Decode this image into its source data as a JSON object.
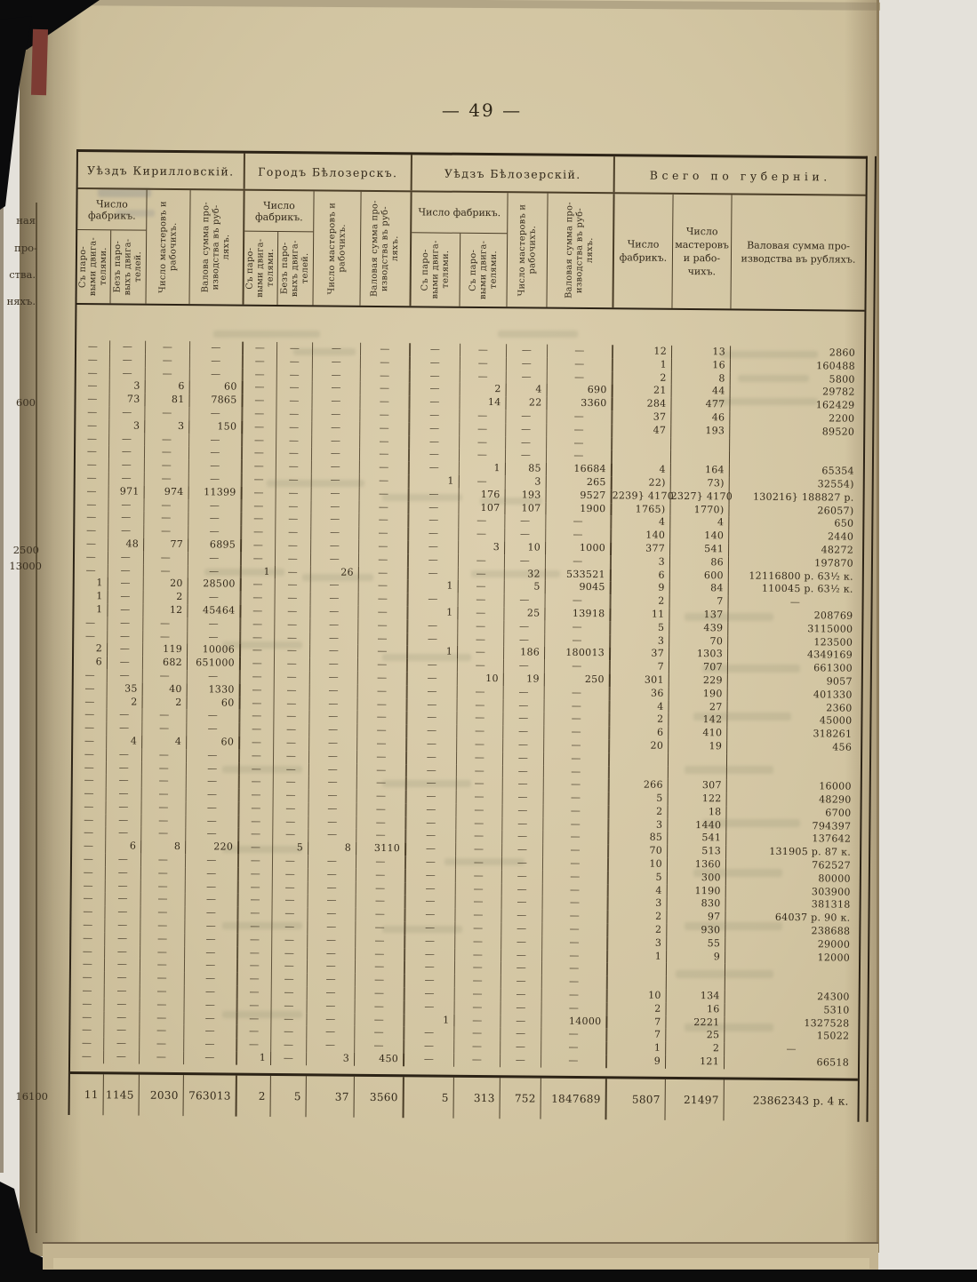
{
  "page": {
    "number_display": "— 49 —"
  },
  "colors": {
    "paper": "#d2c5a2",
    "ink": "#33291a",
    "binding_red": "#7c3b33"
  },
  "left_bleed": {
    "fragments": [
      "ная",
      "про-",
      "ства.",
      "няхъ."
    ],
    "values": [
      "600",
      "2500",
      "13000",
      "16100"
    ]
  },
  "table": {
    "groups": [
      {
        "title": "Уѣздъ Кирилловскій.",
        "fab": "Число фабрикъ.",
        "sub1": "Съ паро- выми двига- телями.",
        "sub2": "Безъ паро- выхъ двига- телей.",
        "col3": "Число мастеровъ и рабочихъ.",
        "col4": "Валова сумма про- изводства въ руб- ляхъ."
      },
      {
        "title": "Городъ Бѣлозерскъ.",
        "fab": "Число фабрикъ.",
        "sub1": "Съ паро- выми двига- телями.",
        "sub2": "Безъ паро- выхъ двига- телей.",
        "col3": "Число мастеровъ и рабочихъ.",
        "col4": "Валовая сумма про- изводства въ руб- ляхъ."
      },
      {
        "title": "Уѣдзъ Бѣлозерскій.",
        "fab": "Число фабрикъ.",
        "sub1": "Съ паро- выми двига- телями.",
        "sub2": "Съ паро- выми двига- телями.",
        "col3": "Число мастеровъ и рабочихъ.",
        "col4": "Валовая сумма про- изводства въ руб- ляхъ."
      },
      {
        "title": "Всего по губерніи.",
        "col1": "Число фабрикъ.",
        "col2": "Число мастеровъ и рабо- чихъ.",
        "col3": "Валовая сумма про- изводства въ рубляхъ."
      }
    ],
    "rows": [
      [
        "—",
        "—",
        "—",
        "—",
        "—",
        "—",
        "—",
        "—",
        "—",
        "—",
        "—",
        "—",
        "12",
        "13",
        "2860"
      ],
      [
        "—",
        "—",
        "—",
        "—",
        "—",
        "—",
        "—",
        "—",
        "—",
        "—",
        "—",
        "—",
        "1",
        "16",
        "160488"
      ],
      [
        "—",
        "—",
        "—",
        "—",
        "—",
        "—",
        "—",
        "—",
        "—",
        "—",
        "—",
        "—",
        "2",
        "8",
        "5800"
      ],
      [
        "—",
        "3",
        "6",
        "60",
        "—",
        "—",
        "—",
        "—",
        "—",
        "2",
        "4",
        "690",
        "21",
        "44",
        "29782"
      ],
      [
        "—",
        "73",
        "81",
        "7865",
        "—",
        "—",
        "—",
        "—",
        "—",
        "14",
        "22",
        "3360",
        "284",
        "477",
        "162429"
      ],
      [
        "—",
        "—",
        "—",
        "—",
        "—",
        "—",
        "—",
        "—",
        "—",
        "—",
        "—",
        "—",
        "37",
        "46",
        "2200"
      ],
      [
        "—",
        "3",
        "3",
        "150",
        "—",
        "—",
        "—",
        "—",
        "—",
        "—",
        "—",
        "—",
        "47",
        "193",
        "89520"
      ],
      [
        "—",
        "—",
        "—",
        "—",
        "—",
        "—",
        "—",
        "—",
        "—",
        "—",
        "—",
        "—",
        "",
        "",
        ""
      ],
      [
        "—",
        "—",
        "—",
        "—",
        "—",
        "—",
        "—",
        "—",
        "—",
        "—",
        "—",
        "—",
        "",
        "",
        ""
      ],
      [
        "—",
        "—",
        "—",
        "—",
        "—",
        "—",
        "—",
        "—",
        "—",
        "1",
        "85",
        "16684",
        "4",
        "164",
        "65354"
      ],
      [
        "—",
        "—",
        "—",
        "—",
        "—",
        "—",
        "—",
        "—",
        "1",
        "—",
        "3",
        "265",
        "22)",
        "73)",
        "32554)"
      ],
      [
        "—",
        "971",
        "974",
        "11399",
        "—",
        "—",
        "—",
        "—",
        "—",
        "176",
        "193",
        "9527",
        "2239} 4170",
        "2327} 4170",
        "130216}  188827 р."
      ],
      [
        "—",
        "—",
        "—",
        "—",
        "—",
        "—",
        "—",
        "—",
        "—",
        "107",
        "107",
        "1900",
        "1765)",
        "1770)",
        "26057)"
      ],
      [
        "—",
        "—",
        "—",
        "—",
        "—",
        "—",
        "—",
        "—",
        "—",
        "—",
        "—",
        "—",
        "4",
        "4",
        "650"
      ],
      [
        "—",
        "—",
        "—",
        "—",
        "—",
        "—",
        "—",
        "—",
        "—",
        "—",
        "—",
        "—",
        "140",
        "140",
        "2440"
      ],
      [
        "—",
        "48",
        "77",
        "6895",
        "—",
        "—",
        "—",
        "—",
        "—",
        "3",
        "10",
        "1000",
        "377",
        "541",
        "48272"
      ],
      [
        "—",
        "—",
        "—",
        "—",
        "—",
        "—",
        "—",
        "—",
        "—",
        "—",
        "—",
        "—",
        "3",
        "86",
        "197870"
      ],
      [
        "—",
        "—",
        "—",
        "—",
        "1",
        "—",
        "26",
        "—",
        "—",
        "—",
        "32",
        "533521",
        "6",
        "600",
        "12116800 р. 63½ к."
      ],
      [
        "1",
        "—",
        "20",
        "28500",
        "—",
        "—",
        "—",
        "—",
        "1",
        "—",
        "5",
        "9045",
        "9",
        "84",
        "110045 р. 63½ к."
      ],
      [
        "1",
        "—",
        "2",
        "—",
        "—",
        "—",
        "—",
        "—",
        "—",
        "—",
        "—",
        "—",
        "2",
        "7",
        "—"
      ],
      [
        "1",
        "—",
        "12",
        "45464",
        "—",
        "—",
        "—",
        "—",
        "1",
        "—",
        "25",
        "13918",
        "11",
        "137",
        "208769"
      ],
      [
        "—",
        "—",
        "—",
        "—",
        "—",
        "—",
        "—",
        "—",
        "—",
        "—",
        "—",
        "—",
        "5",
        "439",
        "3115000"
      ],
      [
        "—",
        "—",
        "—",
        "—",
        "—",
        "—",
        "—",
        "—",
        "—",
        "—",
        "—",
        "—",
        "3",
        "70",
        "123500"
      ],
      [
        "2",
        "—",
        "119",
        "10006",
        "—",
        "—",
        "—",
        "—",
        "1",
        "—",
        "186",
        "180013",
        "37",
        "1303",
        "4349169"
      ],
      [
        "6",
        "—",
        "682",
        "651000",
        "—",
        "—",
        "—",
        "—",
        "—",
        "—",
        "—",
        "—",
        "7",
        "707",
        "661300"
      ],
      [
        "—",
        "—",
        "—",
        "—",
        "—",
        "—",
        "—",
        "—",
        "—",
        "10",
        "19",
        "250",
        "301",
        "229",
        "9057"
      ],
      [
        "—",
        "35",
        "40",
        "1330",
        "—",
        "—",
        "—",
        "—",
        "—",
        "—",
        "—",
        "—",
        "36",
        "190",
        "401330"
      ],
      [
        "—",
        "2",
        "2",
        "60",
        "—",
        "—",
        "—",
        "—",
        "—",
        "—",
        "—",
        "—",
        "4",
        "27",
        "2360"
      ],
      [
        "—",
        "—",
        "—",
        "—",
        "—",
        "—",
        "—",
        "—",
        "—",
        "—",
        "—",
        "—",
        "2",
        "142",
        "45000"
      ],
      [
        "—",
        "—",
        "—",
        "—",
        "—",
        "—",
        "—",
        "—",
        "—",
        "—",
        "—",
        "—",
        "6",
        "410",
        "318261"
      ],
      [
        "—",
        "4",
        "4",
        "60",
        "—",
        "—",
        "—",
        "—",
        "—",
        "—",
        "—",
        "—",
        "20",
        "19",
        "456"
      ],
      [
        "—",
        "—",
        "—",
        "—",
        "—",
        "—",
        "—",
        "—",
        "—",
        "—",
        "—",
        "—",
        "",
        "",
        ""
      ],
      [
        "—",
        "—",
        "—",
        "—",
        "—",
        "—",
        "—",
        "—",
        "—",
        "—",
        "—",
        "—",
        "",
        "",
        ""
      ],
      [
        "—",
        "—",
        "—",
        "—",
        "—",
        "—",
        "—",
        "—",
        "—",
        "—",
        "—",
        "—",
        "266",
        "307",
        "16000"
      ],
      [
        "—",
        "—",
        "—",
        "—",
        "—",
        "—",
        "—",
        "—",
        "—",
        "—",
        "—",
        "—",
        "5",
        "122",
        "48290"
      ],
      [
        "—",
        "—",
        "—",
        "—",
        "—",
        "—",
        "—",
        "—",
        "—",
        "—",
        "—",
        "—",
        "2",
        "18",
        "6700"
      ],
      [
        "—",
        "—",
        "—",
        "—",
        "—",
        "—",
        "—",
        "—",
        "—",
        "—",
        "—",
        "—",
        "3",
        "1440",
        "794397"
      ],
      [
        "—",
        "—",
        "—",
        "—",
        "—",
        "—",
        "—",
        "—",
        "—",
        "—",
        "—",
        "—",
        "85",
        "541",
        "137642"
      ],
      [
        "—",
        "6",
        "8",
        "220",
        "—",
        "5",
        "8",
        "3110",
        "—",
        "—",
        "—",
        "—",
        "70",
        "513",
        "131905 р. 87 к."
      ],
      [
        "—",
        "—",
        "—",
        "—",
        "—",
        "—",
        "—",
        "—",
        "—",
        "—",
        "—",
        "—",
        "10",
        "1360",
        "762527"
      ],
      [
        "—",
        "—",
        "—",
        "—",
        "—",
        "—",
        "—",
        "—",
        "—",
        "—",
        "—",
        "—",
        "5",
        "300",
        "80000"
      ],
      [
        "—",
        "—",
        "—",
        "—",
        "—",
        "—",
        "—",
        "—",
        "—",
        "—",
        "—",
        "—",
        "4",
        "1190",
        "303900"
      ],
      [
        "—",
        "—",
        "—",
        "—",
        "—",
        "—",
        "—",
        "—",
        "—",
        "—",
        "—",
        "—",
        "3",
        "830",
        "381318"
      ],
      [
        "—",
        "—",
        "—",
        "—",
        "—",
        "—",
        "—",
        "—",
        "—",
        "—",
        "—",
        "—",
        "2",
        "97",
        "64037 р. 90 к."
      ],
      [
        "—",
        "—",
        "—",
        "—",
        "—",
        "—",
        "—",
        "—",
        "—",
        "—",
        "—",
        "—",
        "2",
        "930",
        "238688"
      ],
      [
        "—",
        "—",
        "—",
        "—",
        "—",
        "—",
        "—",
        "—",
        "—",
        "—",
        "—",
        "—",
        "3",
        "55",
        "29000"
      ],
      [
        "—",
        "—",
        "—",
        "—",
        "—",
        "—",
        "—",
        "—",
        "—",
        "—",
        "—",
        "—",
        "1",
        "9",
        "12000"
      ],
      [
        "—",
        "—",
        "—",
        "—",
        "—",
        "—",
        "—",
        "—",
        "—",
        "—",
        "—",
        "—",
        "",
        "",
        ""
      ],
      [
        "—",
        "—",
        "—",
        "—",
        "—",
        "—",
        "—",
        "—",
        "—",
        "—",
        "—",
        "—",
        "",
        "",
        ""
      ],
      [
        "—",
        "—",
        "—",
        "—",
        "—",
        "—",
        "—",
        "—",
        "—",
        "—",
        "—",
        "—",
        "10",
        "134",
        "24300"
      ],
      [
        "—",
        "—",
        "—",
        "—",
        "—",
        "—",
        "—",
        "—",
        "—",
        "—",
        "—",
        "—",
        "2",
        "16",
        "5310"
      ],
      [
        "—",
        "—",
        "—",
        "—",
        "—",
        "—",
        "—",
        "—",
        "1",
        "—",
        "—",
        "14000",
        "7",
        "2221",
        "1327528"
      ],
      [
        "—",
        "—",
        "—",
        "—",
        "—",
        "—",
        "—",
        "—",
        "—",
        "—",
        "—",
        "—",
        "7",
        "25",
        "15022"
      ],
      [
        "—",
        "—",
        "—",
        "—",
        "—",
        "—",
        "—",
        "—",
        "—",
        "—",
        "—",
        "—",
        "1",
        "2",
        "—"
      ],
      [
        "—",
        "—",
        "—",
        "—",
        "1",
        "—",
        "3",
        "450",
        "—",
        "—",
        "—",
        "—",
        "9",
        "121",
        "66518"
      ]
    ],
    "totals": [
      "11",
      "1145",
      "2030",
      "763013",
      "2",
      "5",
      "37",
      "3560",
      "5",
      "313",
      "752",
      "1847689",
      "5807",
      "21497",
      "23862343 р. 4 к."
    ]
  }
}
